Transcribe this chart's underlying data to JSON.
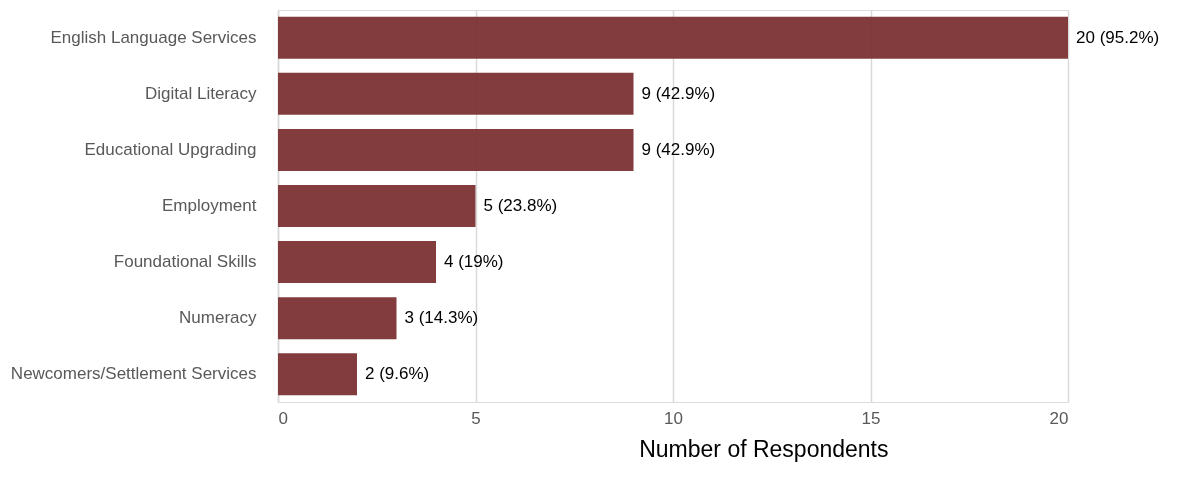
{
  "chart_data": {
    "type": "bar",
    "orientation": "horizontal",
    "xlabel": "Number of Respondents",
    "categories": [
      "English Language Services",
      "Digital Literacy",
      "Educational Upgrading",
      "Employment",
      "Foundational Skills",
      "Numeracy",
      "Newcomers/Settlement Services"
    ],
    "values": [
      20,
      9,
      9,
      5,
      4,
      3,
      2
    ],
    "value_labels": [
      "20 (95.2%)",
      "9 (42.9%)",
      "9 (42.9%)",
      "5 (23.8%)",
      "4 (19%)",
      "3 (14.3%)",
      "2 (9.6%)"
    ],
    "color": "#7b3233",
    "xlim": [
      0,
      20
    ],
    "xticks": [
      0,
      5,
      10,
      15,
      20
    ],
    "grid": "x"
  }
}
